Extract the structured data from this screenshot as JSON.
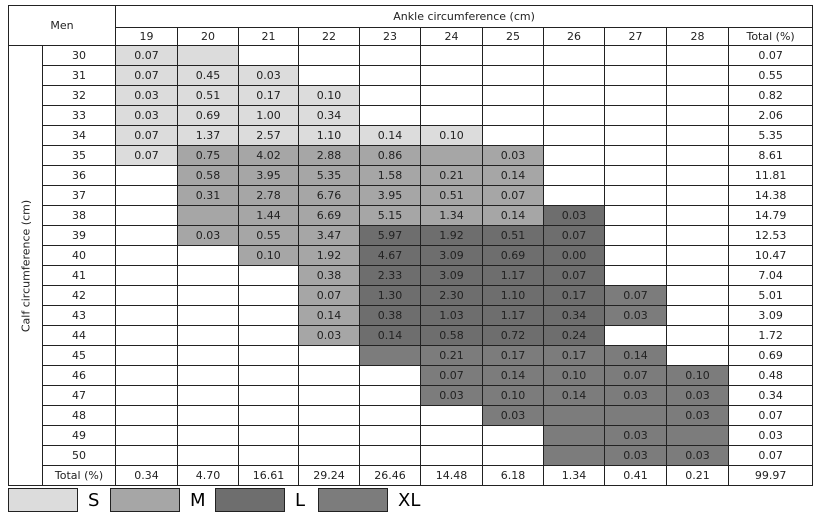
{
  "header": {
    "corner": "Men",
    "ankle_label": "Ankle circumference (cm)",
    "row_axis_label": "Calf circumference (cm)",
    "columns": [
      "19",
      "20",
      "21",
      "22",
      "23",
      "24",
      "25",
      "26",
      "27",
      "28",
      "Total (%)"
    ]
  },
  "rows": [
    {
      "label": "30",
      "cells": [
        "0.07",
        null,
        null,
        null,
        null,
        null,
        null,
        null,
        null,
        null
      ],
      "total": "0.07",
      "shade": [
        "S",
        "S",
        null,
        null,
        null,
        null,
        null,
        null,
        null,
        null
      ]
    },
    {
      "label": "31",
      "cells": [
        "0.07",
        "0.45",
        "0.03",
        null,
        null,
        null,
        null,
        null,
        null,
        null
      ],
      "total": "0.55",
      "shade": [
        "S",
        "S",
        "S",
        null,
        null,
        null,
        null,
        null,
        null,
        null
      ]
    },
    {
      "label": "32",
      "cells": [
        "0.03",
        "0.51",
        "0.17",
        "0.10",
        null,
        null,
        null,
        null,
        null,
        null
      ],
      "total": "0.82",
      "shade": [
        "S",
        "S",
        "S",
        "S",
        null,
        null,
        null,
        null,
        null,
        null
      ]
    },
    {
      "label": "33",
      "cells": [
        "0.03",
        "0.69",
        "1.00",
        "0.34",
        null,
        null,
        null,
        null,
        null,
        null
      ],
      "total": "2.06",
      "shade": [
        "S",
        "S",
        "S",
        "S",
        null,
        null,
        null,
        null,
        null,
        null
      ]
    },
    {
      "label": "34",
      "cells": [
        "0.07",
        "1.37",
        "2.57",
        "1.10",
        "0.14",
        "0.10",
        null,
        null,
        null,
        null
      ],
      "total": "5.35",
      "shade": [
        "S",
        "S",
        "S",
        "S",
        "S",
        "S",
        null,
        null,
        null,
        null
      ]
    },
    {
      "label": "35",
      "cells": [
        "0.07",
        "0.75",
        "4.02",
        "2.88",
        "0.86",
        null,
        "0.03",
        null,
        null,
        null
      ],
      "total": "8.61",
      "shade": [
        "S",
        "M",
        "M",
        "M",
        "M",
        "M",
        "M",
        null,
        null,
        null
      ]
    },
    {
      "label": "36",
      "cells": [
        null,
        "0.58",
        "3.95",
        "5.35",
        "1.58",
        "0.21",
        "0.14",
        null,
        null,
        null
      ],
      "total": "11.81",
      "shade": [
        null,
        "M",
        "M",
        "M",
        "M",
        "M",
        "M",
        null,
        null,
        null
      ]
    },
    {
      "label": "37",
      "cells": [
        null,
        "0.31",
        "2.78",
        "6.76",
        "3.95",
        "0.51",
        "0.07",
        null,
        null,
        null
      ],
      "total": "14.38",
      "shade": [
        null,
        "M",
        "M",
        "M",
        "M",
        "M",
        "M",
        null,
        null,
        null
      ]
    },
    {
      "label": "38",
      "cells": [
        null,
        null,
        "1.44",
        "6.69",
        "5.15",
        "1.34",
        "0.14",
        "0.03",
        null,
        null
      ],
      "total": "14.79",
      "shade": [
        null,
        "M",
        "M",
        "M",
        "M",
        "M",
        "M",
        "L",
        null,
        null
      ]
    },
    {
      "label": "39",
      "cells": [
        null,
        "0.03",
        "0.55",
        "3.47",
        "5.97",
        "1.92",
        "0.51",
        "0.07",
        null,
        null
      ],
      "total": "12.53",
      "shade": [
        null,
        "M",
        "M",
        "M",
        "L",
        "L",
        "L",
        "L",
        null,
        null
      ]
    },
    {
      "label": "40",
      "cells": [
        null,
        null,
        "0.10",
        "1.92",
        "4.67",
        "3.09",
        "0.69",
        "0.00",
        null,
        null
      ],
      "total": "10.47",
      "shade": [
        null,
        null,
        "M",
        "M",
        "L",
        "L",
        "L",
        "L",
        null,
        null
      ]
    },
    {
      "label": "41",
      "cells": [
        null,
        null,
        null,
        "0.38",
        "2.33",
        "3.09",
        "1.17",
        "0.07",
        null,
        null
      ],
      "total": "7.04",
      "shade": [
        null,
        null,
        null,
        "M",
        "L",
        "L",
        "L",
        "L",
        null,
        null
      ]
    },
    {
      "label": "42",
      "cells": [
        null,
        null,
        null,
        "0.07",
        "1.30",
        "2.30",
        "1.10",
        "0.17",
        "0.07",
        null
      ],
      "total": "5.01",
      "shade": [
        null,
        null,
        null,
        "M",
        "L",
        "L",
        "L",
        "L",
        "XL",
        null
      ]
    },
    {
      "label": "43",
      "cells": [
        null,
        null,
        null,
        "0.14",
        "0.38",
        "1.03",
        "1.17",
        "0.34",
        "0.03",
        null
      ],
      "total": "3.09",
      "shade": [
        null,
        null,
        null,
        "M",
        "L",
        "L",
        "L",
        "L",
        "XL",
        null
      ]
    },
    {
      "label": "44",
      "cells": [
        null,
        null,
        null,
        "0.03",
        "0.14",
        "0.58",
        "0.72",
        "0.24",
        null,
        null
      ],
      "total": "1.72",
      "shade": [
        null,
        null,
        null,
        "M",
        "L",
        "L",
        "L",
        "L",
        null,
        null
      ]
    },
    {
      "label": "45",
      "cells": [
        null,
        null,
        null,
        null,
        null,
        "0.21",
        "0.17",
        "0.17",
        "0.14",
        null
      ],
      "total": "0.69",
      "shade": [
        null,
        null,
        null,
        null,
        "XL",
        "XL",
        "XL",
        "XL",
        "XL",
        null
      ]
    },
    {
      "label": "46",
      "cells": [
        null,
        null,
        null,
        null,
        null,
        "0.07",
        "0.14",
        "0.10",
        "0.07",
        "0.10"
      ],
      "total": "0.48",
      "shade": [
        null,
        null,
        null,
        null,
        null,
        "XL",
        "XL",
        "XL",
        "XL",
        "XL"
      ]
    },
    {
      "label": "47",
      "cells": [
        null,
        null,
        null,
        null,
        null,
        "0.03",
        "0.10",
        "0.14",
        "0.03",
        "0.03"
      ],
      "total": "0.34",
      "shade": [
        null,
        null,
        null,
        null,
        null,
        "XL",
        "XL",
        "XL",
        "XL",
        "XL"
      ]
    },
    {
      "label": "48",
      "cells": [
        null,
        null,
        null,
        null,
        null,
        null,
        "0.03",
        null,
        null,
        "0.03"
      ],
      "total": "0.07",
      "shade": [
        null,
        null,
        null,
        null,
        null,
        null,
        "XL",
        "XL",
        "XL",
        "XL"
      ]
    },
    {
      "label": "49",
      "cells": [
        null,
        null,
        null,
        null,
        null,
        null,
        null,
        null,
        "0.03",
        null
      ],
      "total": "0.03",
      "shade": [
        null,
        null,
        null,
        null,
        null,
        null,
        null,
        "XL",
        "XL",
        "XL"
      ]
    },
    {
      "label": "50",
      "cells": [
        null,
        null,
        null,
        null,
        null,
        null,
        null,
        null,
        "0.03",
        "0.03"
      ],
      "total": "0.07",
      "shade": [
        null,
        null,
        null,
        null,
        null,
        null,
        null,
        "XL",
        "XL",
        "XL"
      ]
    }
  ],
  "total_row": {
    "label": "Total (%)",
    "cells": [
      "0.34",
      "4.70",
      "16.61",
      "29.24",
      "26.46",
      "14.48",
      "6.18",
      "1.34",
      "0.41",
      "0.21"
    ],
    "total": "99.97"
  },
  "legend": [
    {
      "label": "S",
      "color": "#dcdcdc"
    },
    {
      "label": "M",
      "color": "#a6a6a6"
    },
    {
      "label": "L",
      "color": "#6e6e6e"
    },
    {
      "label": "XL",
      "color": "#7c7c7c"
    }
  ]
}
